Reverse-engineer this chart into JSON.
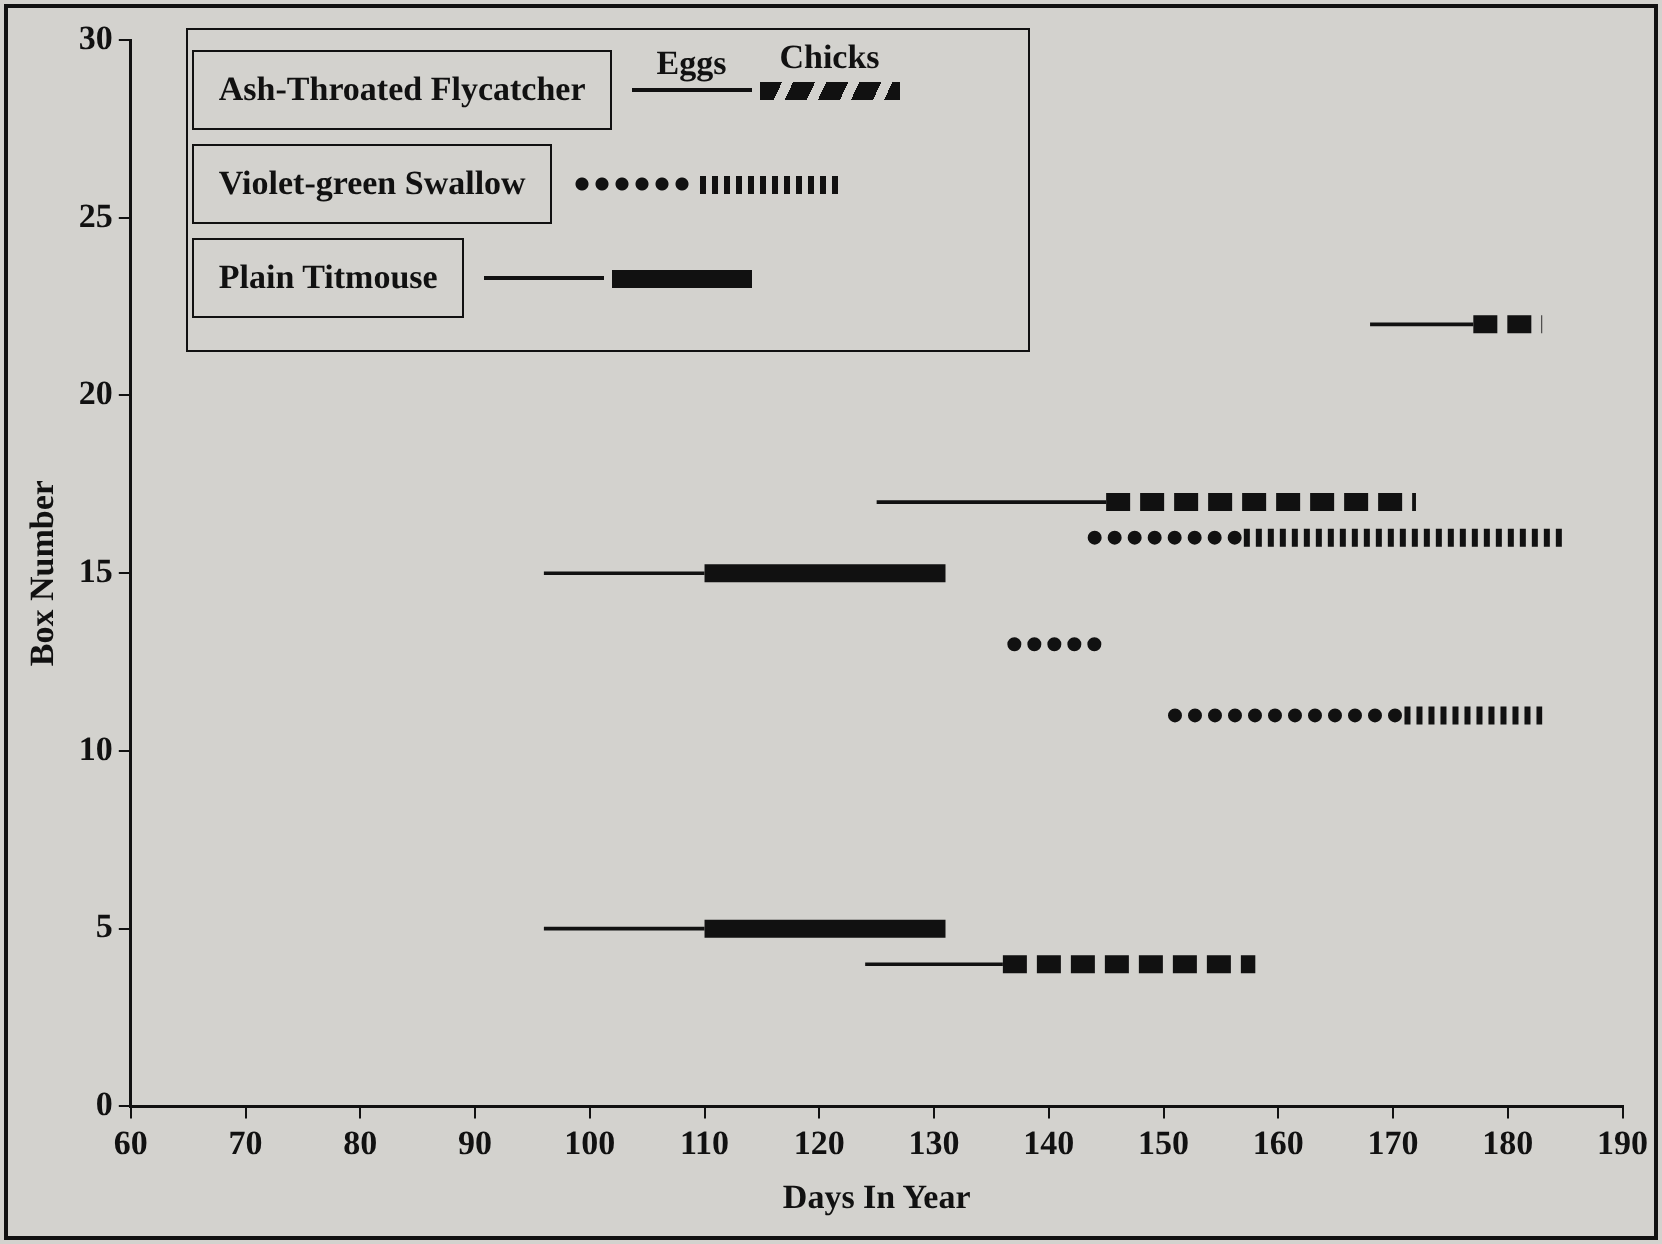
{
  "chart_data": {
    "type": "line",
    "xlabel": "Days In Year",
    "ylabel": "Box Number",
    "xlim": [
      60,
      190
    ],
    "xticks": [
      60,
      70,
      80,
      90,
      100,
      110,
      120,
      130,
      140,
      150,
      160,
      170,
      180,
      190
    ],
    "ylim": [
      0,
      30
    ],
    "yticks": [
      0,
      5,
      10,
      15,
      20,
      25,
      30
    ],
    "legend": "top left",
    "annotations": [
      "Eggs",
      "Chicks"
    ],
    "series": [
      {
        "name": "Ash-Throated Flycatcher",
        "color": "#111111",
        "line_style": "solid",
        "x": [
          125,
          145
        ],
        "values": [
          17,
          17
        ]
      },
      {
        "color": "#111111",
        "line_style": "dashed",
        "x": [
          145,
          172
        ],
        "values": [
          17,
          17
        ]
      },
      {
        "color": "#111111",
        "line_style": "solid",
        "x": [
          124,
          136
        ],
        "values": [
          4,
          4
        ]
      },
      {
        "color": "#111111",
        "line_style": "dashed",
        "x": [
          136,
          158
        ],
        "values": [
          4,
          4
        ]
      },
      {
        "color": "#111111",
        "line_style": "solid",
        "x": [
          168,
          177
        ],
        "values": [
          22,
          22
        ]
      },
      {
        "color": "#111111",
        "line_style": "dashed",
        "x": [
          177,
          183
        ],
        "values": [
          22,
          22
        ]
      },
      {
        "name": "Violet-green Swallow",
        "color": "#111111",
        "line_style": "dotted",
        "x": [
          144,
          157
        ],
        "values": [
          16,
          16
        ]
      },
      {
        "color": "#111111",
        "line_style": "dotted",
        "x": [
          157,
          185
        ],
        "values": [
          16,
          16
        ]
      },
      {
        "color": "#111111",
        "line_style": "dotted",
        "x": [
          151,
          171
        ],
        "values": [
          11,
          11
        ]
      },
      {
        "color": "#111111",
        "line_style": "dotted",
        "x": [
          171,
          183
        ],
        "values": [
          11,
          11
        ]
      },
      {
        "name": "Plain Titmouse",
        "color": "#111111",
        "line_style": "solid",
        "x": [
          96,
          110
        ],
        "values": [
          15,
          15
        ]
      },
      {
        "color": "#111111",
        "line_style": "solid",
        "x": [
          110,
          131
        ],
        "values": [
          15,
          15
        ]
      },
      {
        "color": "#111111",
        "line_style": "solid",
        "x": [
          96,
          110
        ],
        "values": [
          5,
          5
        ]
      },
      {
        "color": "#111111",
        "line_style": "solid",
        "x": [
          110,
          131
        ],
        "values": [
          5,
          5
        ]
      },
      {
        "color": "#111111",
        "line_style": "dotted",
        "x": [
          137,
          144
        ],
        "values": [
          13,
          13
        ]
      }
    ]
  }
}
